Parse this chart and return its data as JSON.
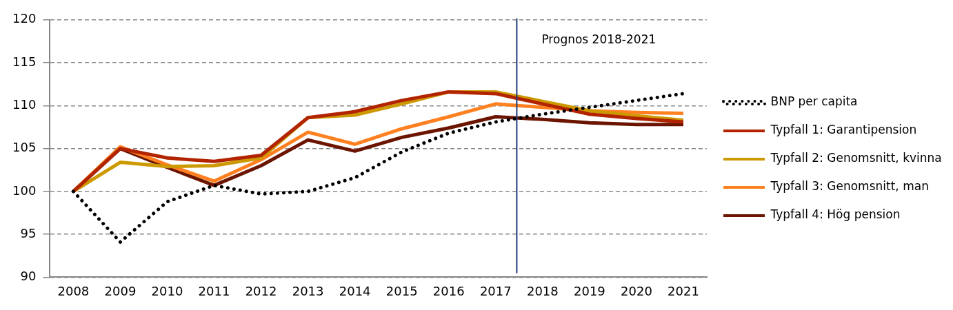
{
  "chart_data": {
    "type": "line",
    "x": [
      2008,
      2009,
      2010,
      2011,
      2012,
      2013,
      2014,
      2015,
      2016,
      2017,
      2018,
      2019,
      2020,
      2021
    ],
    "xlim": [
      2007.5,
      2021.5
    ],
    "xticks": [
      2008,
      2009,
      2010,
      2011,
      2012,
      2013,
      2014,
      2015,
      2016,
      2017,
      2018,
      2019,
      2020,
      2021
    ],
    "ylim": [
      90,
      120
    ],
    "yticks": [
      90,
      95,
      100,
      105,
      110,
      115,
      120
    ],
    "grid": "y",
    "legend": "right",
    "marker": "none",
    "ref_lines": [
      {
        "axis": "x",
        "value": 2017.45,
        "label": "Prognos 2018-2021",
        "color": "#1f3a7a"
      }
    ],
    "series": [
      {
        "name": "BNP per capita",
        "color": "#000000",
        "line_style": "dotted",
        "values": [
          100,
          94.1,
          98.8,
          100.7,
          99.7,
          100.0,
          101.6,
          104.6,
          106.8,
          108.1,
          109.0,
          109.8,
          110.6,
          111.4
        ]
      },
      {
        "name": "Typfall 1: Garantipension",
        "color": "#b22400",
        "line_style": "solid",
        "values": [
          100,
          105.0,
          103.9,
          103.5,
          104.2,
          108.6,
          109.3,
          110.6,
          111.6,
          111.4,
          110.2,
          109.0,
          108.5,
          108.1
        ]
      },
      {
        "name": "Typfall 2: Genomsnitt, kvinna",
        "color": "#cc9900",
        "line_style": "solid",
        "values": [
          100,
          103.4,
          102.9,
          103.0,
          103.9,
          108.6,
          108.9,
          110.2,
          111.6,
          111.6,
          110.5,
          109.4,
          108.8,
          108.3
        ]
      },
      {
        "name": "Typfall 3: Genomsnitt, man",
        "color": "#ff8020",
        "line_style": "solid",
        "values": [
          100,
          105.2,
          103.1,
          101.2,
          103.7,
          106.9,
          105.5,
          107.3,
          108.7,
          110.2,
          109.8,
          109.4,
          109.2,
          109.1
        ]
      },
      {
        "name": "Typfall 4: Hög pension",
        "color": "#6b1500",
        "line_style": "solid",
        "values": [
          100,
          105.0,
          102.8,
          100.7,
          103.0,
          106.0,
          104.7,
          106.3,
          107.4,
          108.7,
          108.4,
          108.0,
          107.8,
          107.8
        ]
      }
    ]
  }
}
